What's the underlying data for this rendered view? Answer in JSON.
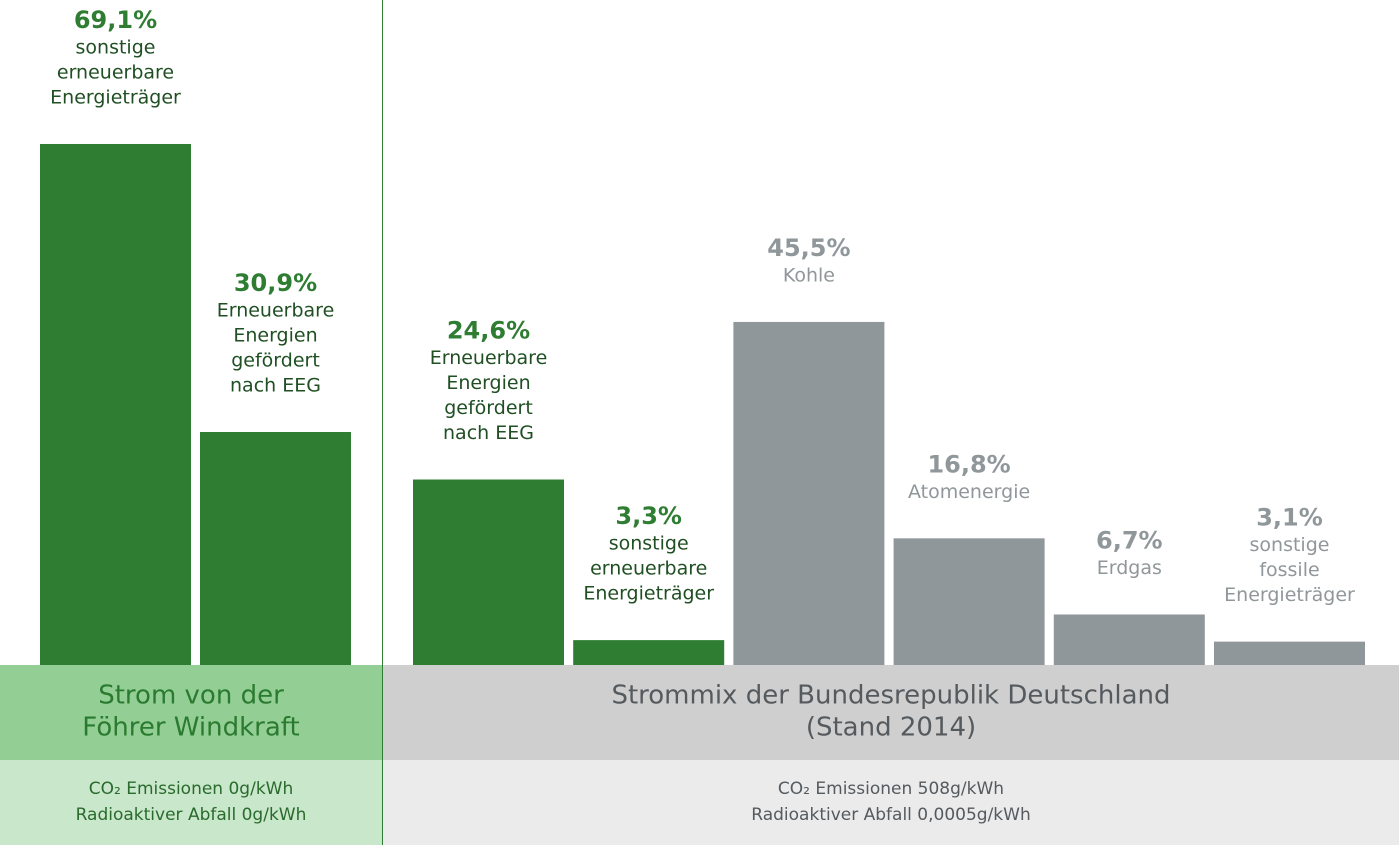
{
  "chart_data": [
    {
      "type": "bar",
      "title": [
        "Strom von der",
        "Föhrer Windkraft"
      ],
      "notes": [
        "CO₂ Emissionen 0g/kWh",
        "Radioaktiver Abfall 0g/kWh"
      ],
      "categories": [
        [
          "sonstige",
          "erneuerbare",
          "Energieträger"
        ],
        [
          "Erneuerbare",
          "Energien",
          "gefördert",
          "nach EEG"
        ]
      ],
      "values": [
        69.1,
        30.9
      ],
      "value_labels": [
        "69,1%",
        "30,9%"
      ],
      "colors": [
        "#2e7d32",
        "#2e7d32"
      ]
    },
    {
      "type": "bar",
      "title": [
        "Strommix der Bundesrepublik Deutschland",
        "(Stand 2014)"
      ],
      "notes": [
        "CO₂ Emissionen 508g/kWh",
        "Radioaktiver Abfall 0,0005g/kWh"
      ],
      "categories": [
        [
          "Erneuerbare",
          "Energien",
          "gefördert",
          "nach EEG"
        ],
        [
          "sonstige",
          "erneuerbare",
          "Energieträger"
        ],
        [
          "Kohle"
        ],
        [
          "Atomenergie"
        ],
        [
          "Erdgas"
        ],
        [
          "sonstige",
          "fossile",
          "Energieträger"
        ]
      ],
      "values": [
        24.6,
        3.3,
        45.5,
        16.8,
        6.7,
        3.1
      ],
      "value_labels": [
        "24,6%",
        "3,3%",
        "45,5%",
        "16,8%",
        "6,7%",
        "3,1%"
      ],
      "colors": [
        "#2e7d32",
        "#2e7d32",
        "#90979a",
        "#90979a",
        "#90979a",
        "#90979a"
      ]
    }
  ]
}
